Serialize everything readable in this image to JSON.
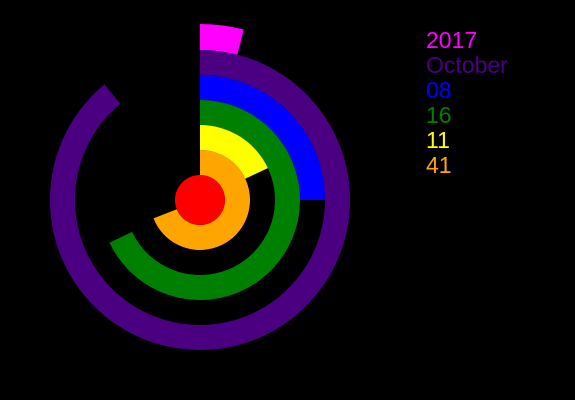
{
  "clock": {
    "year": "2017",
    "month": "October",
    "day": "08",
    "hour": "16",
    "minute": "11",
    "second": "41"
  },
  "rings": [
    {
      "unit": "year",
      "fraction": 0.04,
      "color": "#ff00ff"
    },
    {
      "unit": "month",
      "fraction": 0.89,
      "color": "#4b0082"
    },
    {
      "unit": "day",
      "fraction": 0.25,
      "color": "#0000ff"
    },
    {
      "unit": "hour",
      "fraction": 0.68,
      "color": "#008000"
    },
    {
      "unit": "minute",
      "fraction": 0.18,
      "color": "#ffff00"
    },
    {
      "unit": "second",
      "fraction": 0.69,
      "color": "#ffa500"
    }
  ],
  "center_dot_color": "#ff0000",
  "background_color": "#000000"
}
